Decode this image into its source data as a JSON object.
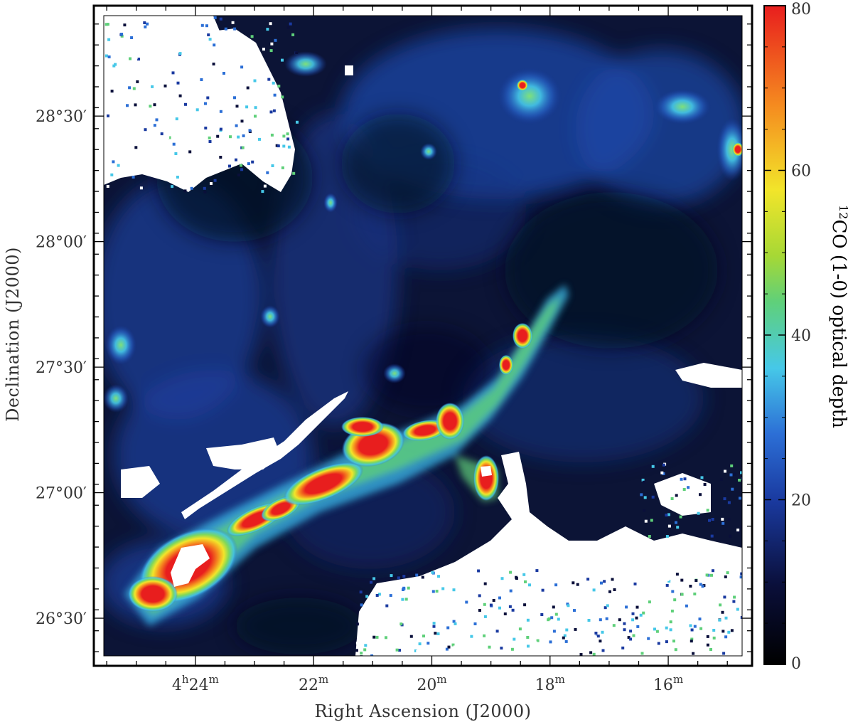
{
  "chart_data": {
    "type": "heatmap",
    "title": "",
    "xlabel": "Right Ascension (J2000)",
    "ylabel": "Declination (J2000)",
    "x_ticks": [
      {
        "value_min": 24,
        "h": "4",
        "m": "24",
        "show_hours": true
      },
      {
        "value_min": 22,
        "m": "22",
        "show_hours": false
      },
      {
        "value_min": 20,
        "m": "20",
        "show_hours": false
      },
      {
        "value_min": 18,
        "m": "18",
        "show_hours": false
      },
      {
        "value_min": 16,
        "m": "16",
        "show_hours": false
      }
    ],
    "x_range_min": [
      25.55,
      14.75
    ],
    "y_ticks": [
      {
        "value_arcmin": 1710,
        "label": "28°30′"
      },
      {
        "value_arcmin": 1680,
        "label": "28°00′"
      },
      {
        "value_arcmin": 1650,
        "label": "27°30′"
      },
      {
        "value_arcmin": 1620,
        "label": "27°00′"
      },
      {
        "value_arcmin": 1590,
        "label": "26°30′"
      }
    ],
    "y_range_arcmin": [
      1581,
      1734
    ],
    "colorbar": {
      "label_sup": "12",
      "label_main": "CO (1-0) optical depth",
      "range": [
        0,
        80
      ],
      "ticks": [
        0,
        20,
        40,
        60,
        80
      ],
      "colors": [
        "#000000",
        "#0a0f3a",
        "#1a3aa0",
        "#2c6fd6",
        "#46c8e8",
        "#5fd07a",
        "#a6d835",
        "#f2e52a",
        "#f58a1f",
        "#e81e1e"
      ]
    },
    "grid": false,
    "features": [
      {
        "ra_min": 24.05,
        "dec_arcmin": 1596,
        "tau": 80
      },
      {
        "ra_min": 23.2,
        "dec_arcmin": 1605,
        "tau": 72
      },
      {
        "ra_min": 22.3,
        "dec_arcmin": 1614,
        "tau": 78
      },
      {
        "ra_min": 21.25,
        "dec_arcmin": 1624,
        "tau": 80
      },
      {
        "ra_min": 20.3,
        "dec_arcmin": 1627,
        "tau": 62
      },
      {
        "ra_min": 19.55,
        "dec_arcmin": 1630,
        "tau": 76
      },
      {
        "ra_min": 19.05,
        "dec_arcmin": 1617,
        "tau": 80
      },
      {
        "ra_min": 18.6,
        "dec_arcmin": 1648,
        "tau": 66
      },
      {
        "ra_min": 18.0,
        "dec_arcmin": 1660,
        "tau": 50
      }
    ]
  }
}
